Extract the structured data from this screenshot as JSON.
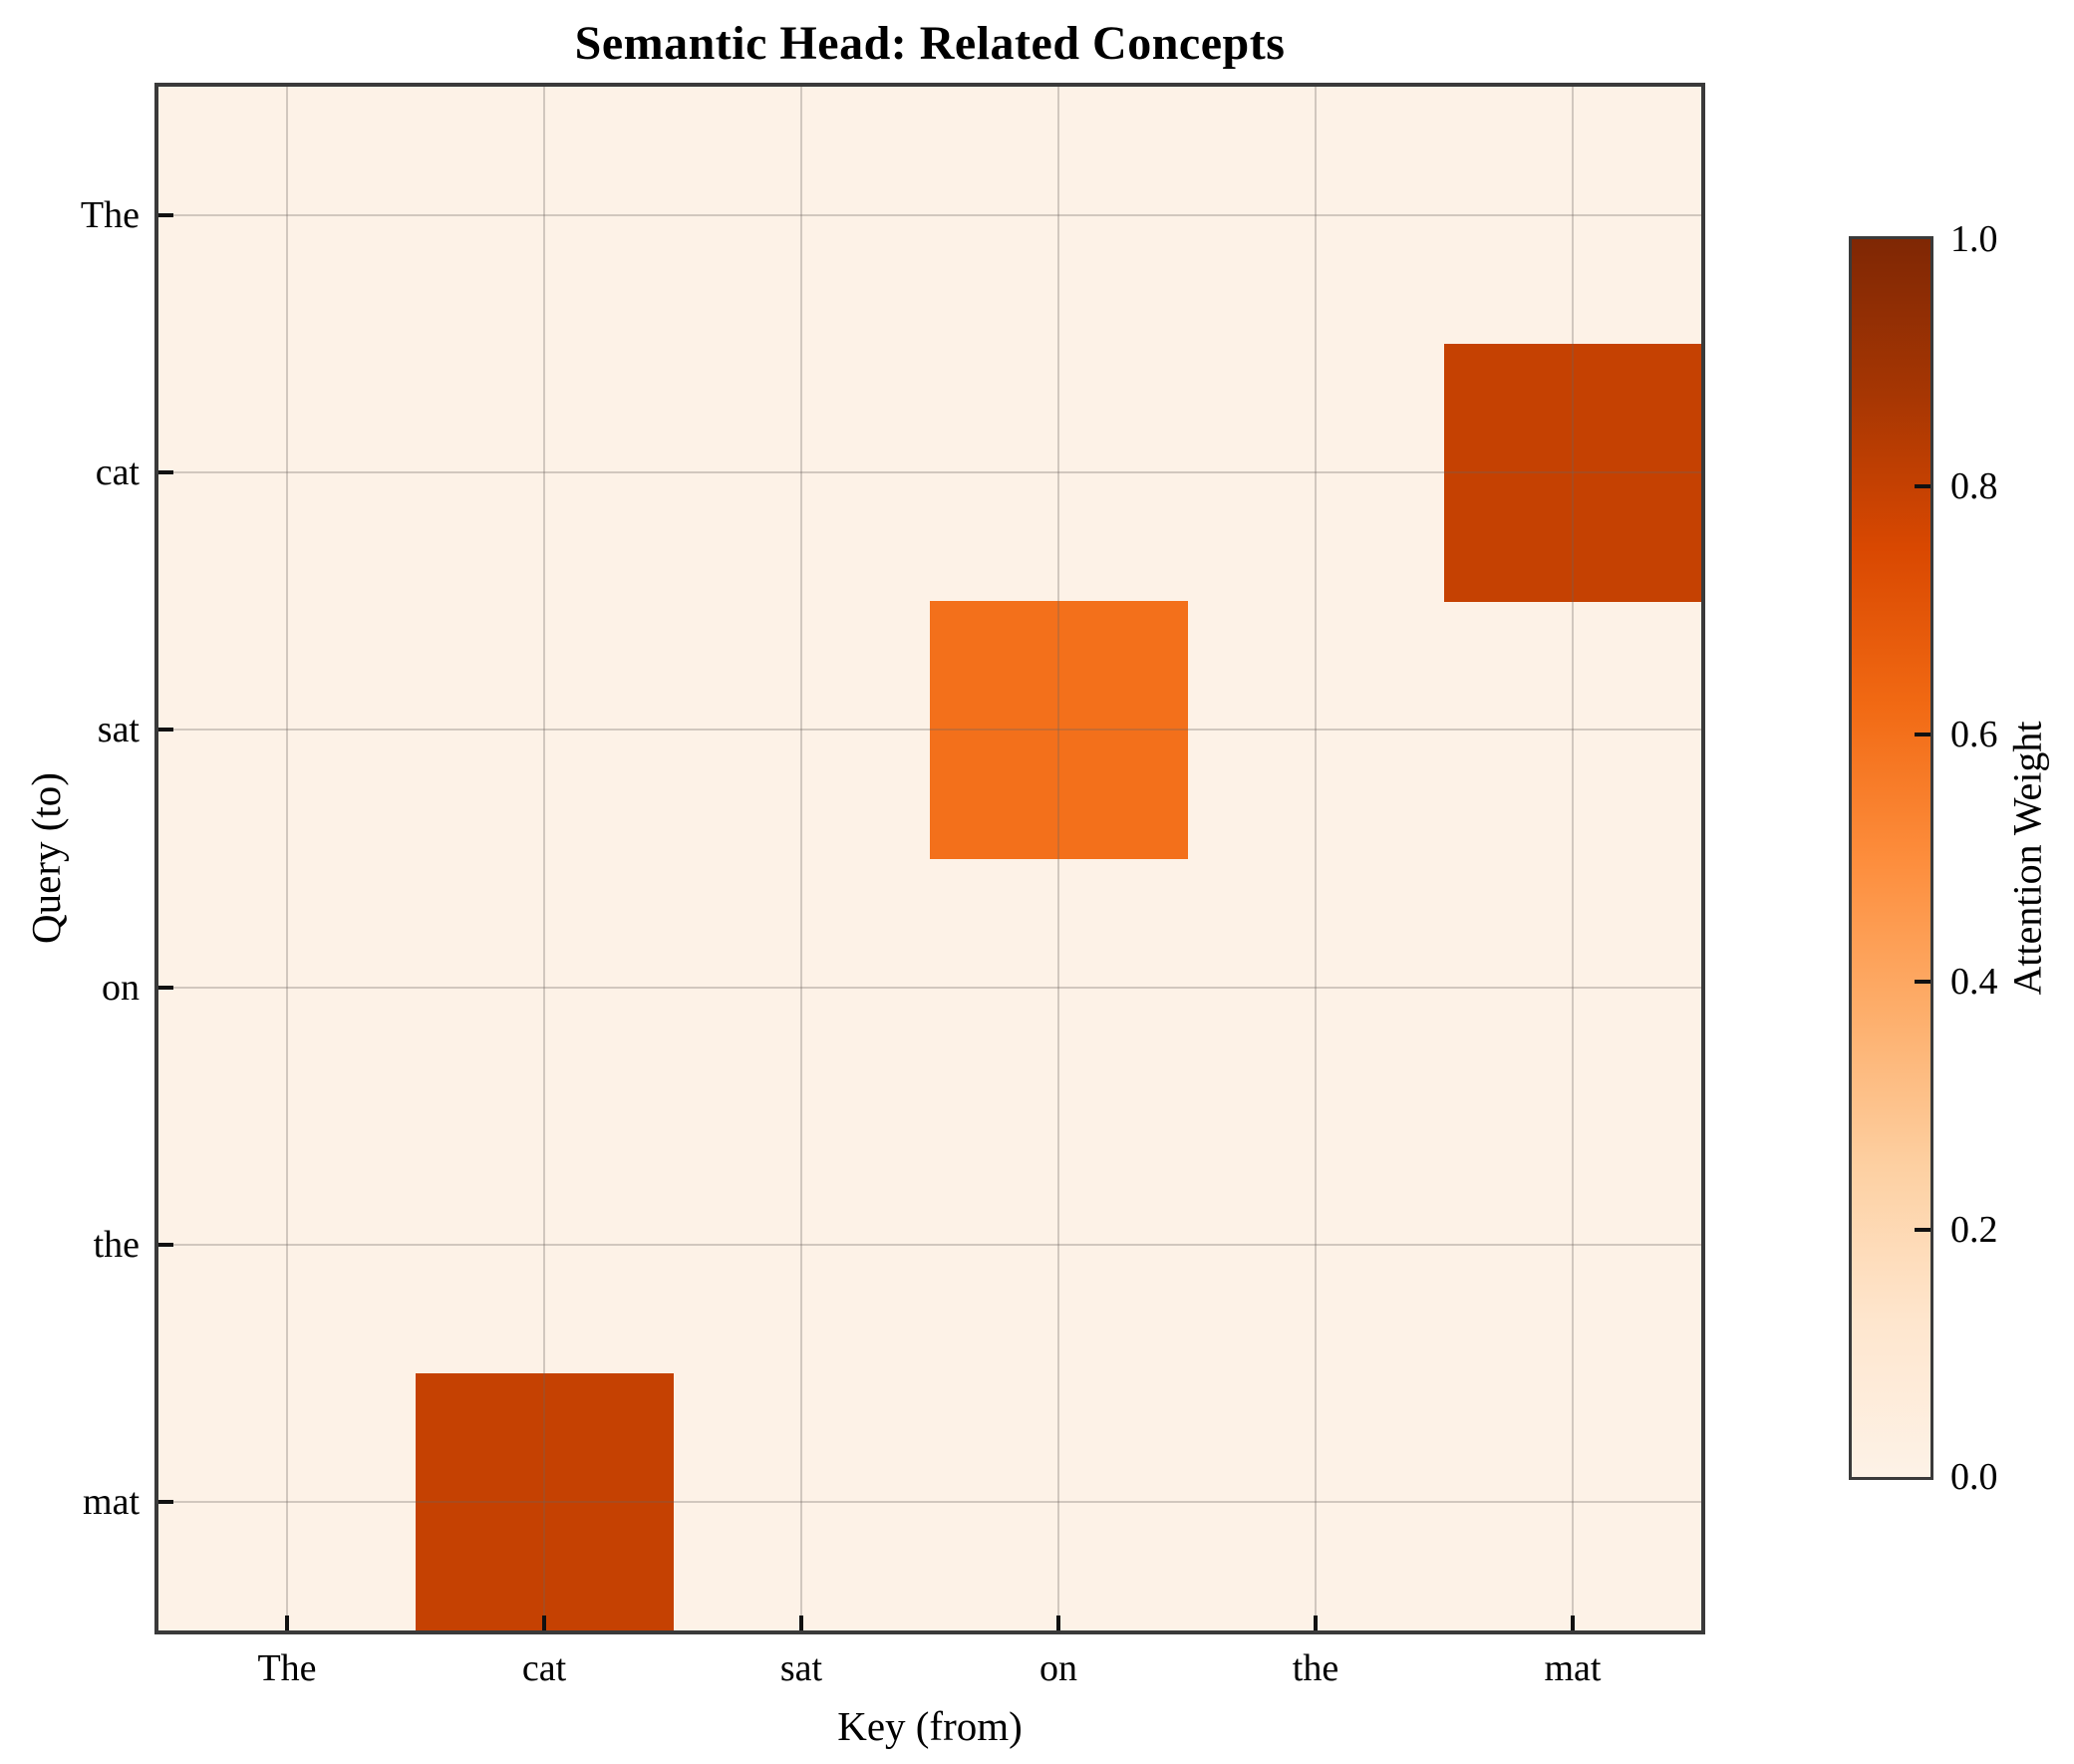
{
  "chart_data": {
    "type": "heatmap",
    "title": "Semantic Head: Related Concepts",
    "xlabel": "Key (from)",
    "ylabel": "Query (to)",
    "x_labels": [
      "The",
      "cat",
      "sat",
      "on",
      "the",
      "mat"
    ],
    "y_labels": [
      "The",
      "cat",
      "sat",
      "on",
      "the",
      "mat"
    ],
    "matrix": [
      [
        0,
        0,
        0,
        0,
        0,
        0
      ],
      [
        0,
        0,
        0,
        0,
        0,
        0.8
      ],
      [
        0,
        0,
        0,
        0.6,
        0,
        0
      ],
      [
        0,
        0,
        0,
        0,
        0,
        0
      ],
      [
        0,
        0,
        0,
        0,
        0,
        0
      ],
      [
        0,
        0.8,
        0,
        0,
        0,
        0
      ]
    ],
    "vmin": 0.0,
    "vmax": 1.0,
    "grid": true,
    "legend_position": "right-colorbar",
    "colorbar": {
      "label": "Attention Weight",
      "tick_labels": [
        "0.0",
        "0.2",
        "0.4",
        "0.6",
        "0.8",
        "1.0"
      ],
      "tick_values": [
        0.0,
        0.2,
        0.4,
        0.6,
        0.8,
        1.0
      ]
    },
    "colors": {
      "colormap_name": "Oranges",
      "cmap_stops": [
        [
          0.0,
          "#fdf2e7"
        ],
        [
          0.125,
          "#fee6ce"
        ],
        [
          0.25,
          "#fdd0a2"
        ],
        [
          0.375,
          "#fdae6b"
        ],
        [
          0.5,
          "#fd8d3c"
        ],
        [
          0.625,
          "#f16913"
        ],
        [
          0.75,
          "#d94801"
        ],
        [
          0.875,
          "#a63603"
        ],
        [
          1.0,
          "#7f2704"
        ]
      ],
      "cell_low": "#fdf2e7",
      "cell_mid_0_6": "#f1701a",
      "cell_high_0_8": "#c33f02",
      "gridline": "rgba(110,100,95,0.30)",
      "spine": "#3a3a3a",
      "text": "#000000"
    }
  }
}
